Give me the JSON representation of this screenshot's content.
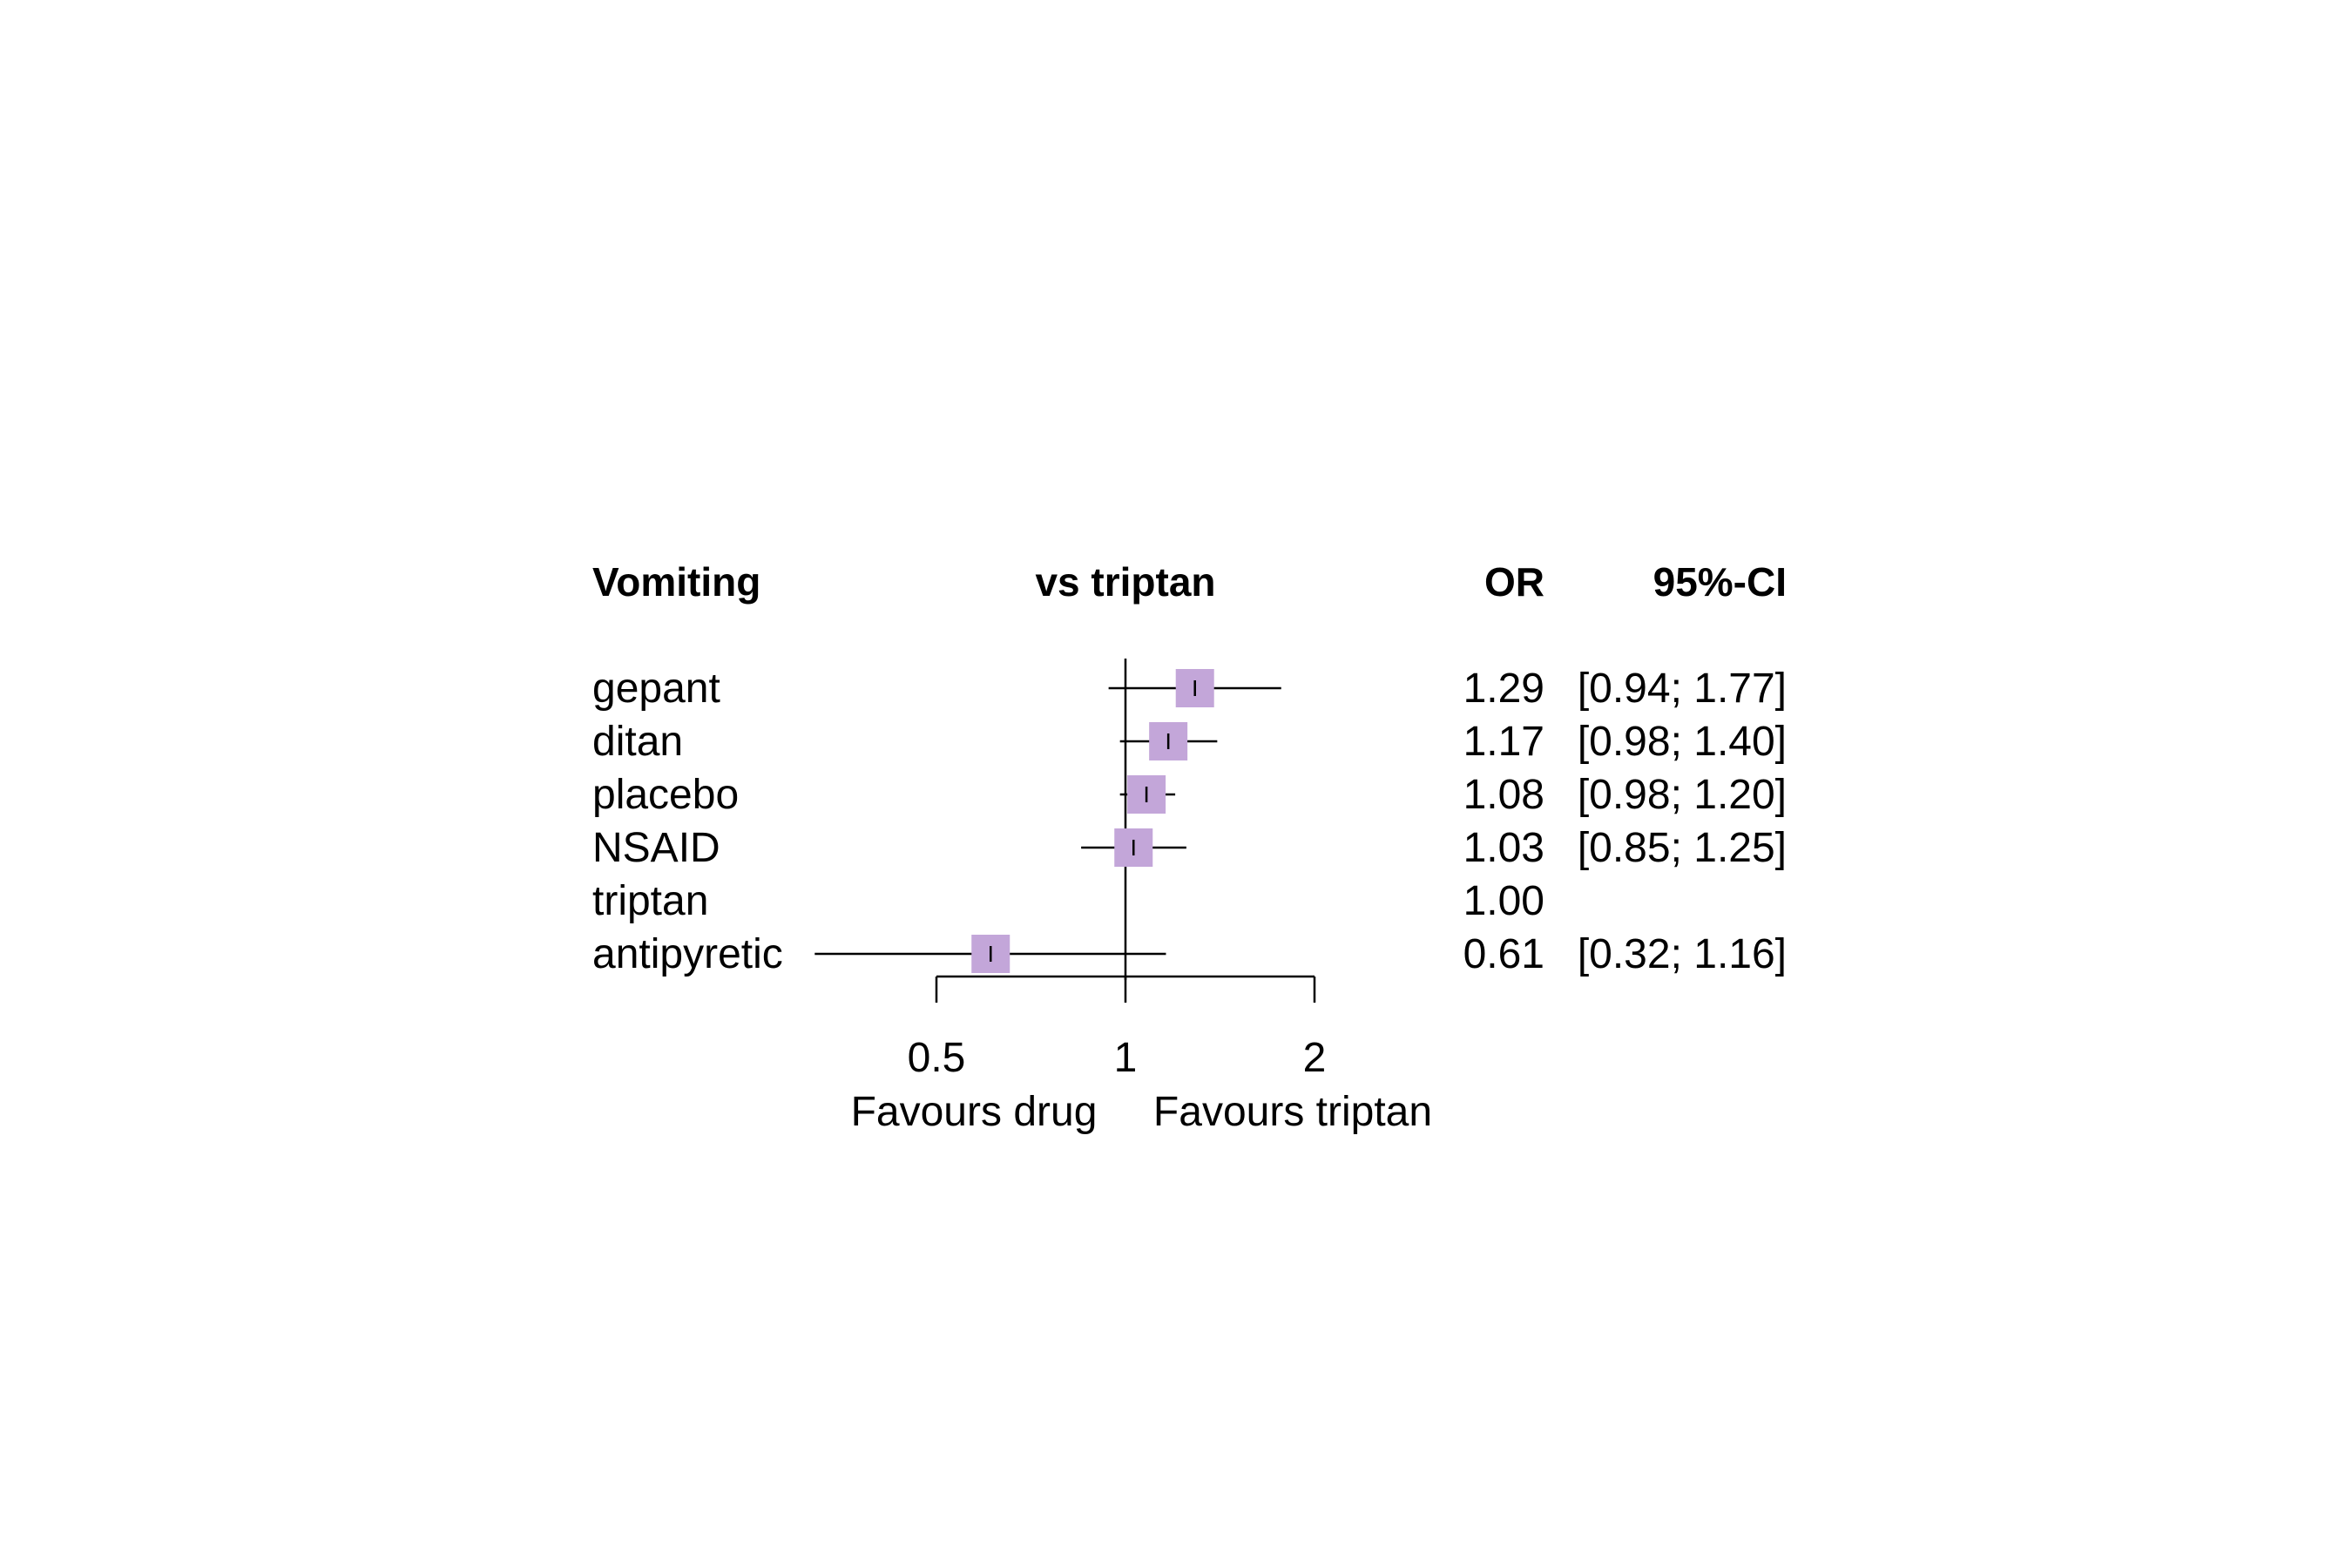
{
  "chart_data": {
    "type": "forest",
    "scale": "log",
    "headers": {
      "study": "Vomiting",
      "plot": "vs triptan",
      "effect": "OR",
      "ci": "95%-CI"
    },
    "rows": [
      {
        "label": "gepant",
        "or": 1.29,
        "lower": 0.94,
        "upper": 1.77,
        "or_text": "1.29",
        "ci_text": "[0.94; 1.77]"
      },
      {
        "label": "ditan",
        "or": 1.17,
        "lower": 0.98,
        "upper": 1.4,
        "or_text": "1.17",
        "ci_text": "[0.98; 1.40]"
      },
      {
        "label": "placebo",
        "or": 1.08,
        "lower": 0.98,
        "upper": 1.2,
        "or_text": "1.08",
        "ci_text": "[0.98; 1.20]"
      },
      {
        "label": "NSAID",
        "or": 1.03,
        "lower": 0.85,
        "upper": 1.25,
        "or_text": "1.03",
        "ci_text": "[0.85; 1.25]"
      },
      {
        "label": "triptan",
        "or": 1.0,
        "lower": null,
        "upper": null,
        "or_text": "1.00",
        "ci_text": ""
      },
      {
        "label": "antipyretic",
        "or": 0.61,
        "lower": 0.32,
        "upper": 1.16,
        "or_text": "0.61",
        "ci_text": "[0.32; 1.16]"
      }
    ],
    "xaxis": {
      "ticks": [
        0.5,
        1,
        2
      ],
      "tick_labels": [
        "0.5",
        "1",
        "2"
      ],
      "reference": 1
    },
    "favours_left": "Favours drug",
    "favours_right": "Favours triptan",
    "marker_color": "#c3a6d9",
    "line_color": "#000000"
  }
}
